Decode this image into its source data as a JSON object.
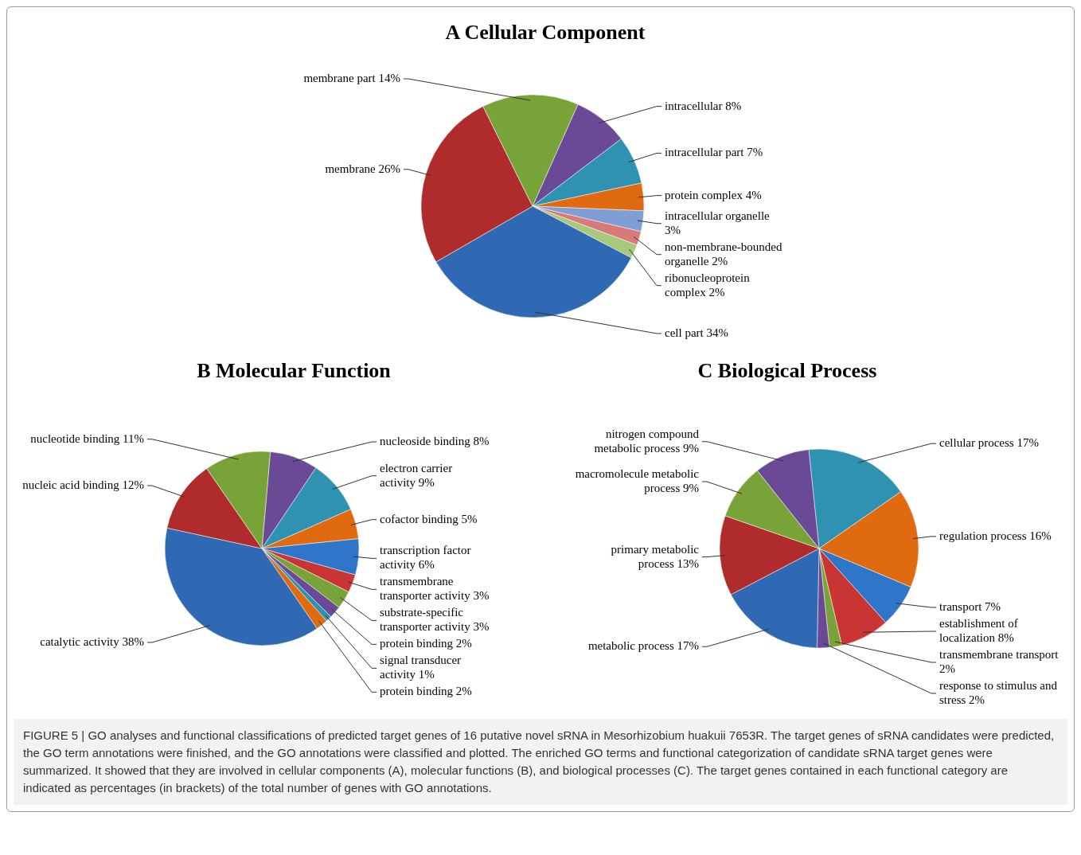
{
  "chart_data": [
    {
      "type": "pie",
      "title": "A  Cellular Component",
      "categories": [
        "intracellular",
        "intracellular part",
        "protein complex",
        "intracellular organelle",
        "non-membrane-bounded organelle",
        "ribonucleoprotein complex",
        "cell part",
        "membrane",
        "membrane part"
      ],
      "values": [
        8,
        7,
        4,
        3,
        2,
        2,
        34,
        26,
        14
      ],
      "value_labels": [
        "8%",
        "7%",
        "4%",
        "3%",
        "2%",
        "2%",
        "34%",
        "26%",
        "14%"
      ],
      "colors": [
        "#6a4a96",
        "#2e92b0",
        "#e06a10",
        "#7f9fd4",
        "#d87a7a",
        "#a8c97c",
        "#2f69b3",
        "#b02c2c",
        "#78a338"
      ]
    },
    {
      "type": "pie",
      "title": "B  Molecular Function",
      "categories": [
        "nucleoside binding",
        "electron carrier activity",
        "cofactor binding",
        "transcription factor activity",
        "transmembrane transporter activity",
        "substrate-specific transporter activity",
        "protein binding",
        "signal transducer activity",
        "protein binding",
        "catalytic activity",
        "nucleic acid binding",
        "nucleotide binding"
      ],
      "values": [
        8,
        9,
        5,
        6,
        3,
        3,
        2,
        1,
        2,
        38,
        12,
        11
      ],
      "value_labels": [
        "8%",
        "9%",
        "5%",
        "6%",
        "3%",
        "3%",
        "2%",
        "1%",
        "2%",
        "38%",
        "12%",
        "11%"
      ],
      "colors": [
        "#6a4a96",
        "#2e92b0",
        "#e06a10",
        "#2f75c9",
        "#c93434",
        "#78a338",
        "#6a4a96",
        "#2e92b0",
        "#e06a10",
        "#2f69b3",
        "#b02c2c",
        "#78a338"
      ]
    },
    {
      "type": "pie",
      "title": "C  Biological Process",
      "categories": [
        "cellular process",
        "regulation process",
        "transport",
        "establishment of localization",
        "transmembrane transport",
        "response to stimulus and stress",
        "metabolic process",
        "primary metabolic process",
        "macromolecule metabolic process",
        "nitrogen compound metabolic process"
      ],
      "values": [
        17,
        16,
        7,
        8,
        2,
        2,
        17,
        13,
        9,
        9
      ],
      "value_labels": [
        "17%",
        "16%",
        "7%",
        "8%",
        "2%",
        "2%",
        "17%",
        "13%",
        "9%",
        "9%"
      ],
      "colors": [
        "#2e92b0",
        "#e06a10",
        "#2f75c9",
        "#c93434",
        "#78a338",
        "#6a4a96",
        "#2f69b3",
        "#b02c2c",
        "#78a338",
        "#6a4a96"
      ],
      "annotations": [
        "FIGURE 5 | GO analyses and functional classifications of predicted target genes of 16 putative novel sRNA in Mesorhizobium huakuii 7653R. The target genes of sRNA candidates were predicted, the GO term annotations were finished, and the GO annotations were classified and plotted. The enriched GO terms and functional categorization of candidate sRNA target genes were summarized. It showed that they are involved in cellular components (A), molecular functions (B), and biological processes (C). The target genes contained in each functional category are indicated as percentages (in brackets) of the total number of genes with GO annotations."
      ]
    }
  ]
}
